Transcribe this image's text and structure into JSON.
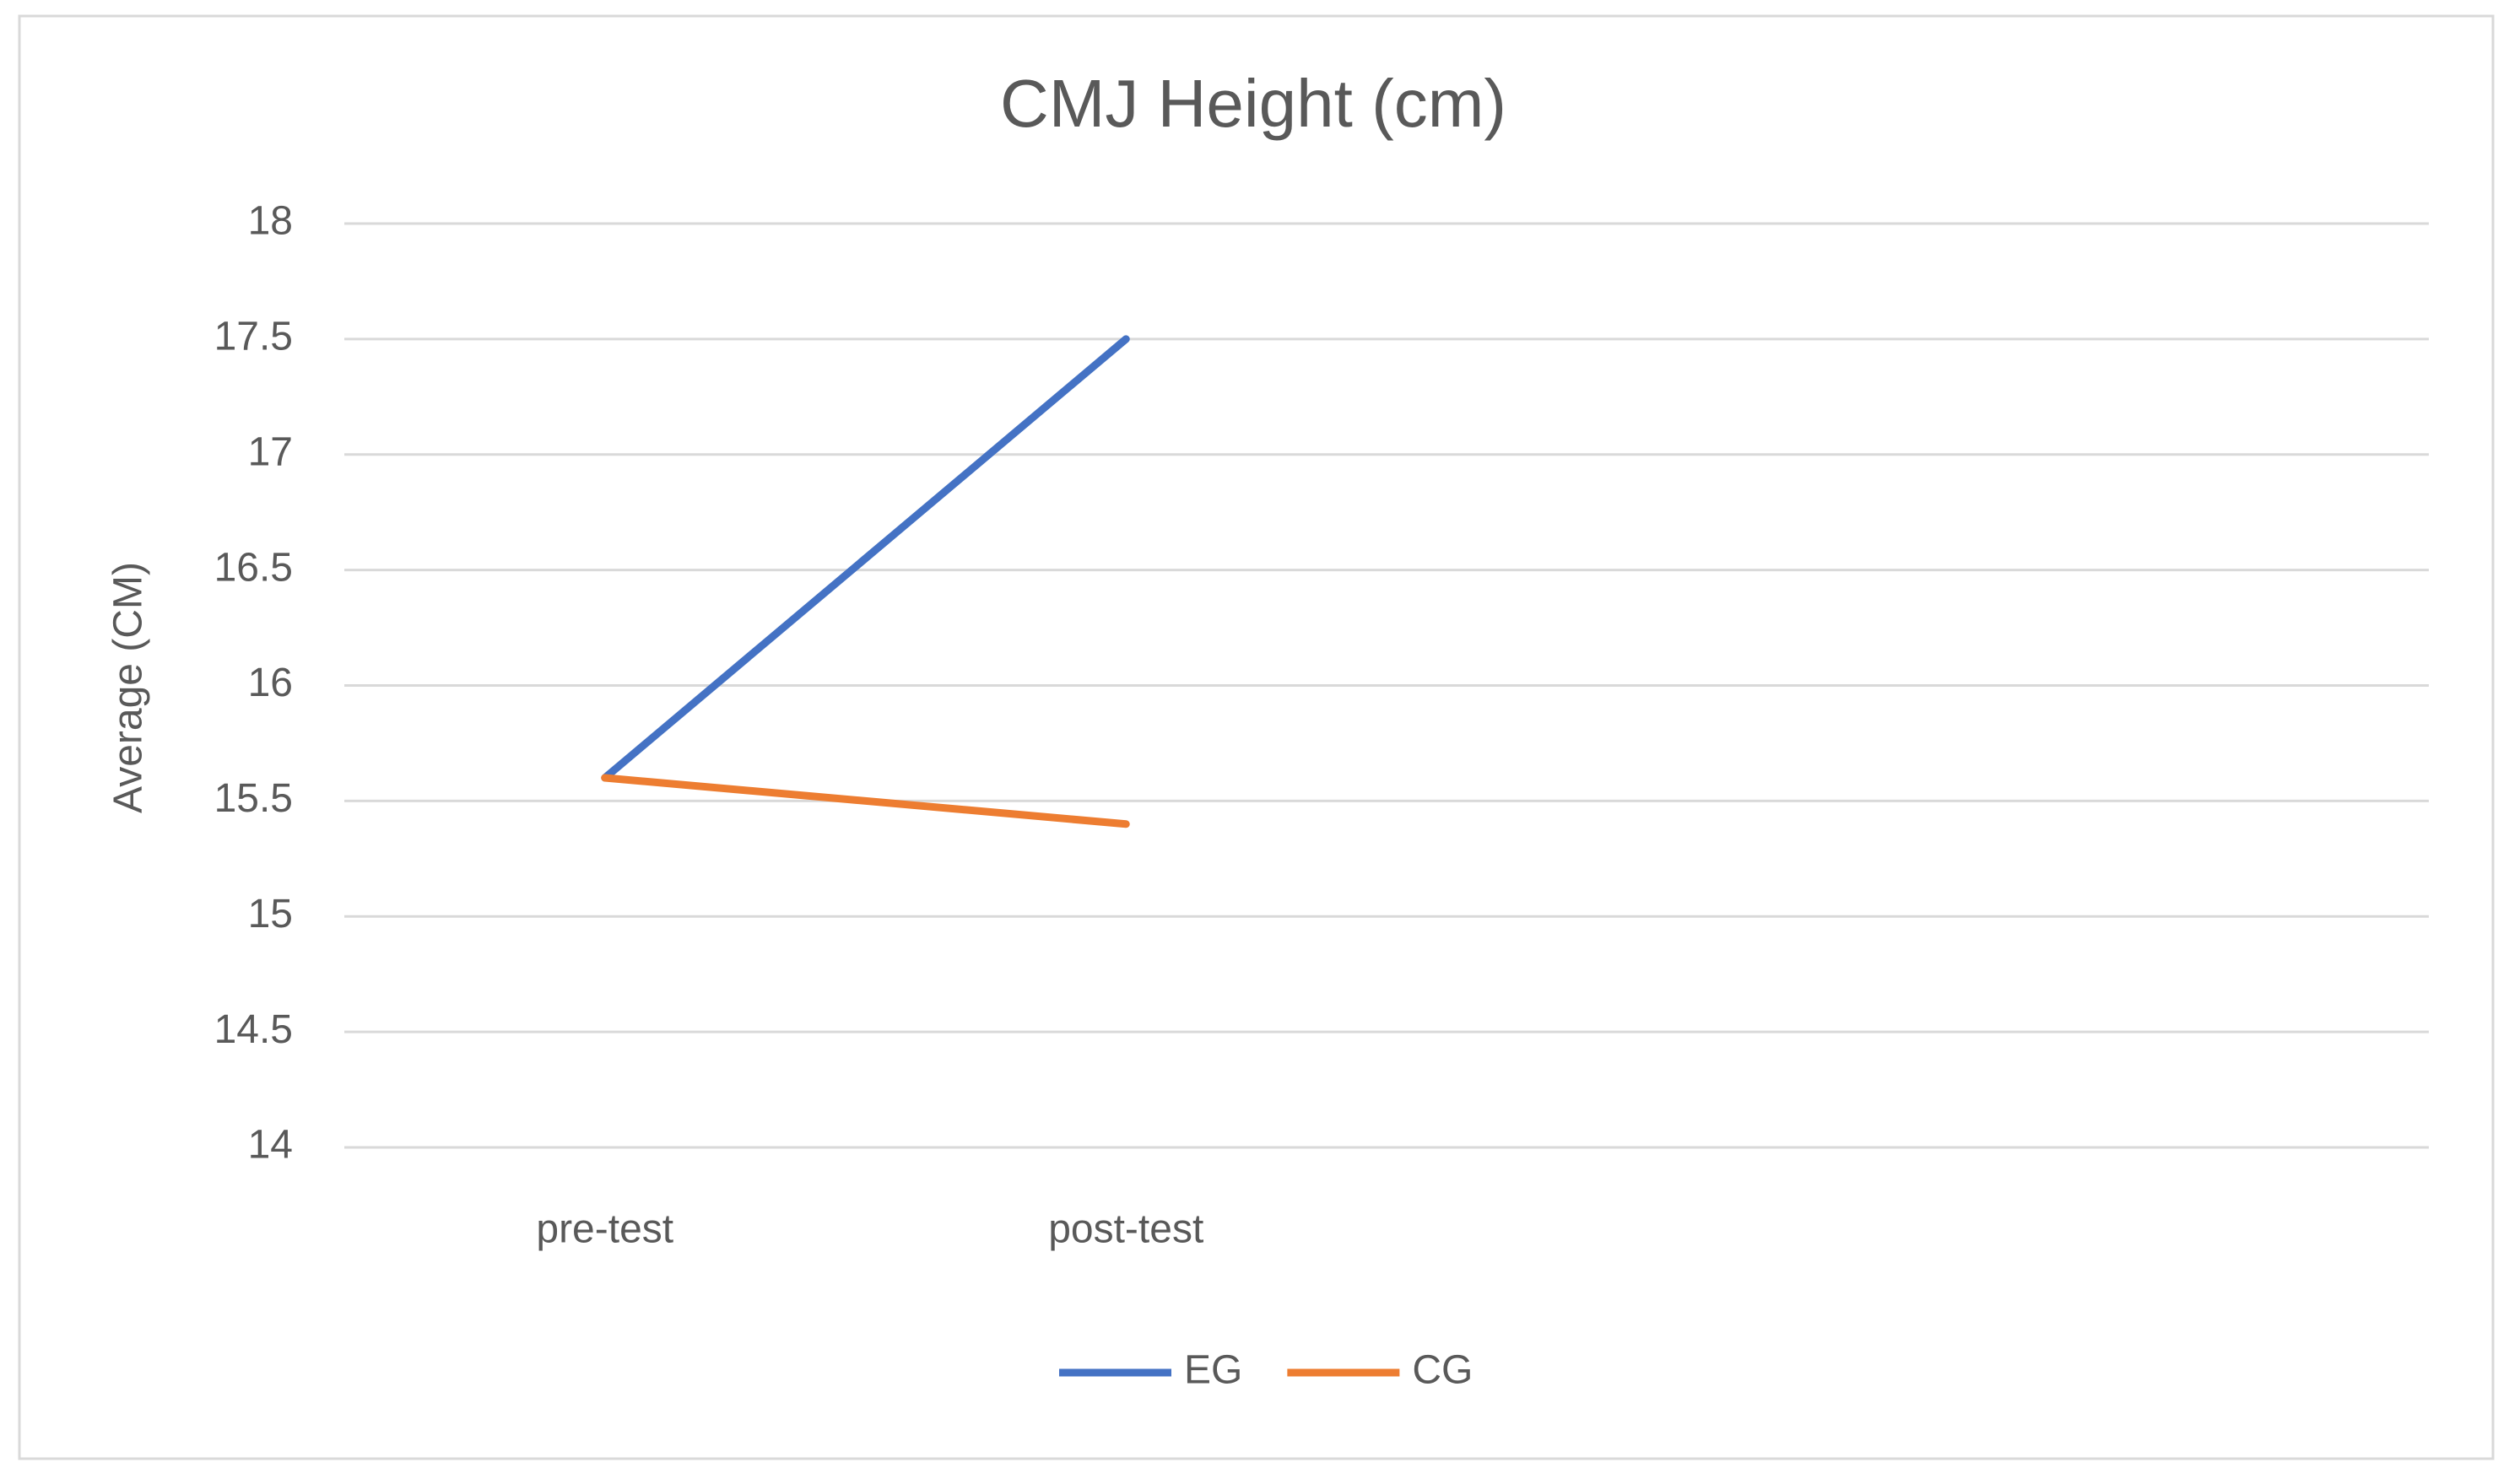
{
  "chart_data": {
    "type": "line",
    "title": "CMJ Height (cm)",
    "y_label": "Average (CM)",
    "categories": [
      "pre-test",
      "post-test",
      null,
      null
    ],
    "series": [
      {
        "name": "EG",
        "color": "#4472c4",
        "values": [
          15.6,
          17.5,
          null,
          null
        ]
      },
      {
        "name": "CG",
        "color": "#ed7d31",
        "values": [
          15.6,
          15.4,
          null,
          null
        ]
      }
    ],
    "ylim": [
      14,
      18
    ],
    "yticks": [
      14,
      14.5,
      15,
      15.5,
      16,
      16.5,
      17,
      17.5,
      18
    ],
    "grid": true,
    "legend": "bottom"
  }
}
